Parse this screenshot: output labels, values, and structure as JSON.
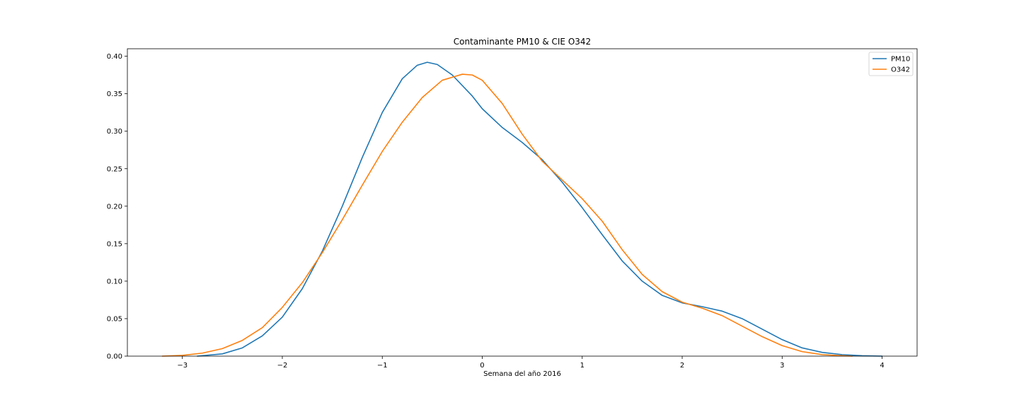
{
  "chart_data": {
    "type": "line",
    "title": "Contaminante PM10 & CIE O342",
    "xlabel": "Semana del año 2016",
    "ylabel": "",
    "xlim": [
      -3.55,
      4.35
    ],
    "ylim": [
      0,
      0.41
    ],
    "xticks": [
      -3,
      -2,
      -1,
      0,
      1,
      2,
      3,
      4
    ],
    "xtick_labels": [
      "−3",
      "−2",
      "−1",
      "0",
      "1",
      "2",
      "3",
      "4"
    ],
    "yticks": [
      0.0,
      0.05,
      0.1,
      0.15,
      0.2,
      0.25,
      0.3,
      0.35,
      0.4
    ],
    "ytick_labels": [
      "0.00",
      "0.05",
      "0.10",
      "0.15",
      "0.20",
      "0.25",
      "0.30",
      "0.35",
      "0.40"
    ],
    "grid": false,
    "legend_position": "top-right",
    "series": [
      {
        "name": "PM10",
        "color": "#1f77b4",
        "points": [
          [
            -2.85,
            0.0
          ],
          [
            -2.6,
            0.003
          ],
          [
            -2.4,
            0.011
          ],
          [
            -2.2,
            0.027
          ],
          [
            -2.0,
            0.052
          ],
          [
            -1.8,
            0.09
          ],
          [
            -1.6,
            0.14
          ],
          [
            -1.4,
            0.2
          ],
          [
            -1.2,
            0.265
          ],
          [
            -1.0,
            0.325
          ],
          [
            -0.8,
            0.37
          ],
          [
            -0.65,
            0.388
          ],
          [
            -0.55,
            0.392
          ],
          [
            -0.45,
            0.389
          ],
          [
            -0.3,
            0.375
          ],
          [
            -0.1,
            0.347
          ],
          [
            0.0,
            0.33
          ],
          [
            0.2,
            0.305
          ],
          [
            0.4,
            0.285
          ],
          [
            0.6,
            0.262
          ],
          [
            0.8,
            0.232
          ],
          [
            1.0,
            0.198
          ],
          [
            1.2,
            0.162
          ],
          [
            1.4,
            0.127
          ],
          [
            1.6,
            0.1
          ],
          [
            1.8,
            0.081
          ],
          [
            2.0,
            0.071
          ],
          [
            2.2,
            0.066
          ],
          [
            2.4,
            0.06
          ],
          [
            2.6,
            0.05
          ],
          [
            2.8,
            0.036
          ],
          [
            3.0,
            0.022
          ],
          [
            3.2,
            0.011
          ],
          [
            3.4,
            0.005
          ],
          [
            3.6,
            0.002
          ],
          [
            3.8,
            0.0005
          ],
          [
            4.0,
            0.0
          ]
        ]
      },
      {
        "name": "O342",
        "color": "#ff7f0e",
        "points": [
          [
            -3.2,
            0.0
          ],
          [
            -3.0,
            0.001
          ],
          [
            -2.8,
            0.004
          ],
          [
            -2.6,
            0.01
          ],
          [
            -2.4,
            0.021
          ],
          [
            -2.2,
            0.038
          ],
          [
            -2.0,
            0.065
          ],
          [
            -1.8,
            0.098
          ],
          [
            -1.6,
            0.138
          ],
          [
            -1.4,
            0.182
          ],
          [
            -1.2,
            0.228
          ],
          [
            -1.0,
            0.273
          ],
          [
            -0.8,
            0.312
          ],
          [
            -0.6,
            0.345
          ],
          [
            -0.4,
            0.368
          ],
          [
            -0.2,
            0.376
          ],
          [
            -0.1,
            0.375
          ],
          [
            0.0,
            0.368
          ],
          [
            0.2,
            0.337
          ],
          [
            0.4,
            0.296
          ],
          [
            0.6,
            0.26
          ],
          [
            0.8,
            0.235
          ],
          [
            1.0,
            0.21
          ],
          [
            1.2,
            0.18
          ],
          [
            1.4,
            0.142
          ],
          [
            1.6,
            0.109
          ],
          [
            1.8,
            0.086
          ],
          [
            2.0,
            0.072
          ],
          [
            2.2,
            0.064
          ],
          [
            2.4,
            0.054
          ],
          [
            2.6,
            0.04
          ],
          [
            2.8,
            0.026
          ],
          [
            3.0,
            0.014
          ],
          [
            3.2,
            0.006
          ],
          [
            3.4,
            0.002
          ],
          [
            3.6,
            0.0005
          ],
          [
            3.7,
            0.0
          ]
        ]
      }
    ]
  }
}
